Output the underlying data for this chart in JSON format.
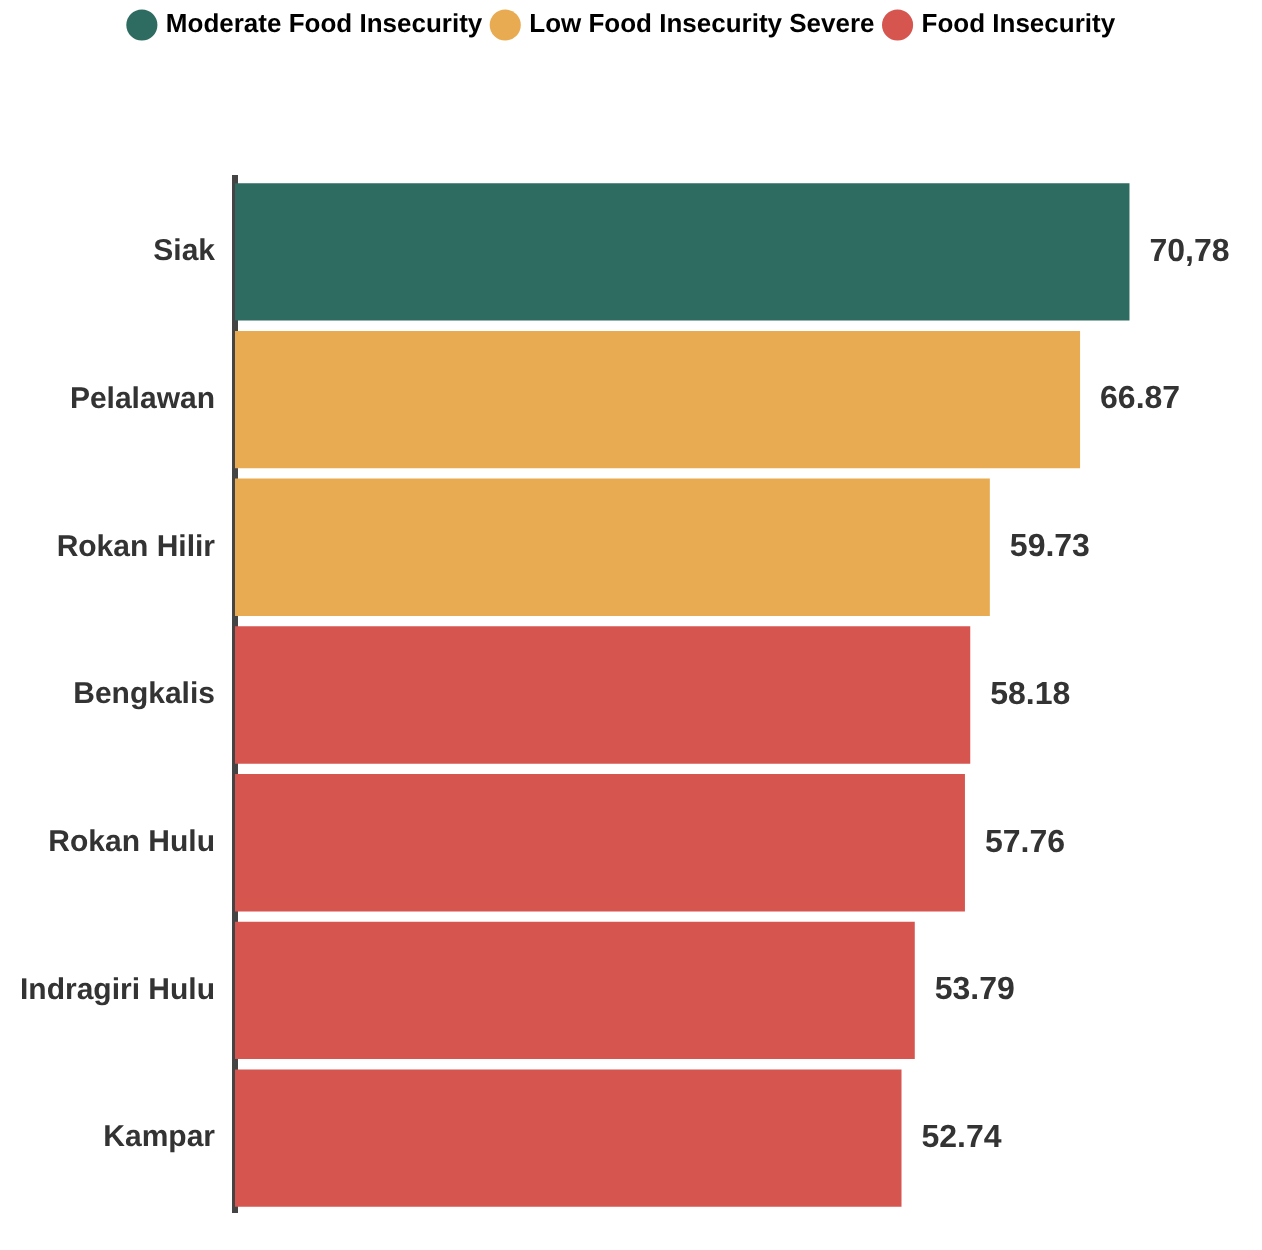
{
  "chart_data": {
    "type": "bar",
    "orientation": "horizontal",
    "stacked": true,
    "tick_labels": "y",
    "legend": "top",
    "categories": [
      "Siak",
      "Pelalawan",
      "Rokan Hilir",
      "Bengkalis",
      "Rokan Hulu",
      "Indragiri Hulu",
      "Kampar"
    ],
    "series": [
      {
        "name": "Moderate Food Insecurity",
        "color": "#2e6b60",
        "values": [
          70.78,
          null,
          null,
          null,
          null,
          null,
          null
        ],
        "value_labels": [
          "70,78",
          null,
          null,
          null,
          null,
          null,
          null
        ]
      },
      {
        "name": "Low Food Insecurity Severe",
        "color": "#e8ab52",
        "values": [
          null,
          66.87,
          59.73,
          null,
          null,
          null,
          null
        ],
        "value_labels": [
          null,
          "66.87",
          "59.73",
          null,
          null,
          null,
          null
        ]
      },
      {
        "name": "Food Insecurity",
        "color": "#d6554f",
        "values": [
          null,
          null,
          null,
          58.18,
          57.76,
          53.79,
          52.74
        ],
        "value_labels": [
          null,
          null,
          null,
          "58.18",
          "57.76",
          "53.79",
          "52.74"
        ]
      }
    ]
  }
}
